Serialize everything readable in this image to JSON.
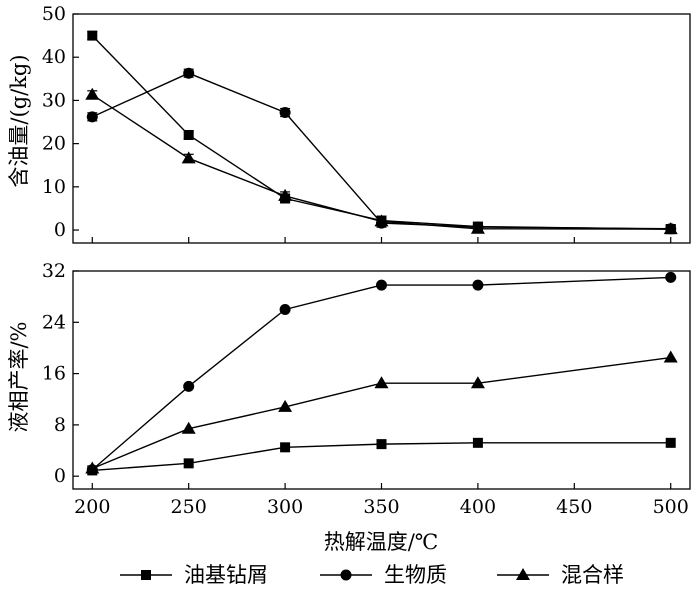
{
  "chart_data": [
    {
      "type": "line",
      "panel": "top",
      "x": [
        200,
        250,
        300,
        350,
        400,
        500
      ],
      "ylabel": "含油量/(g/kg)",
      "ylim": [
        -3,
        50
      ],
      "yticks": [
        0,
        10,
        20,
        30,
        40,
        50
      ],
      "xlim": [
        190,
        510
      ],
      "xticks": [
        200,
        250,
        300,
        350,
        400,
        450,
        500
      ],
      "error_bars": true,
      "series": [
        {
          "name": "油基钻屑",
          "marker": "square",
          "values": [
            45.0,
            22.0,
            7.3,
            2.2,
            0.8,
            0.2
          ]
        },
        {
          "name": "生物质",
          "marker": "circle",
          "values": [
            26.2,
            36.3,
            27.2,
            1.6,
            0.7,
            0.3
          ]
        },
        {
          "name": "混合样",
          "marker": "triangle",
          "values": [
            31.3,
            16.6,
            7.9,
            2.0,
            0.3,
            0.2
          ]
        }
      ]
    },
    {
      "type": "line",
      "panel": "bottom",
      "x": [
        200,
        250,
        300,
        350,
        400,
        500
      ],
      "xlabel": "热解温度/℃",
      "ylabel": "液相产率/%",
      "ylim": [
        -2,
        32
      ],
      "yticks": [
        0,
        8,
        16,
        24,
        32
      ],
      "xlim": [
        190,
        510
      ],
      "xticks": [
        200,
        250,
        300,
        350,
        400,
        450,
        500
      ],
      "series": [
        {
          "name": "油基钻屑",
          "marker": "square",
          "values": [
            0.9,
            2.0,
            4.5,
            5.0,
            5.2,
            5.2
          ]
        },
        {
          "name": "生物质",
          "marker": "circle",
          "values": [
            1.0,
            14.0,
            26.0,
            29.8,
            29.8,
            31.0
          ]
        },
        {
          "name": "混合样",
          "marker": "triangle",
          "values": [
            1.2,
            7.4,
            10.8,
            14.5,
            14.5,
            18.5
          ]
        }
      ]
    }
  ],
  "legend": {
    "placement": "bottom",
    "entries": [
      "油基钻屑",
      "生物质",
      "混合样"
    ]
  },
  "colors": {
    "line": "#000000",
    "background": "#ffffff"
  }
}
